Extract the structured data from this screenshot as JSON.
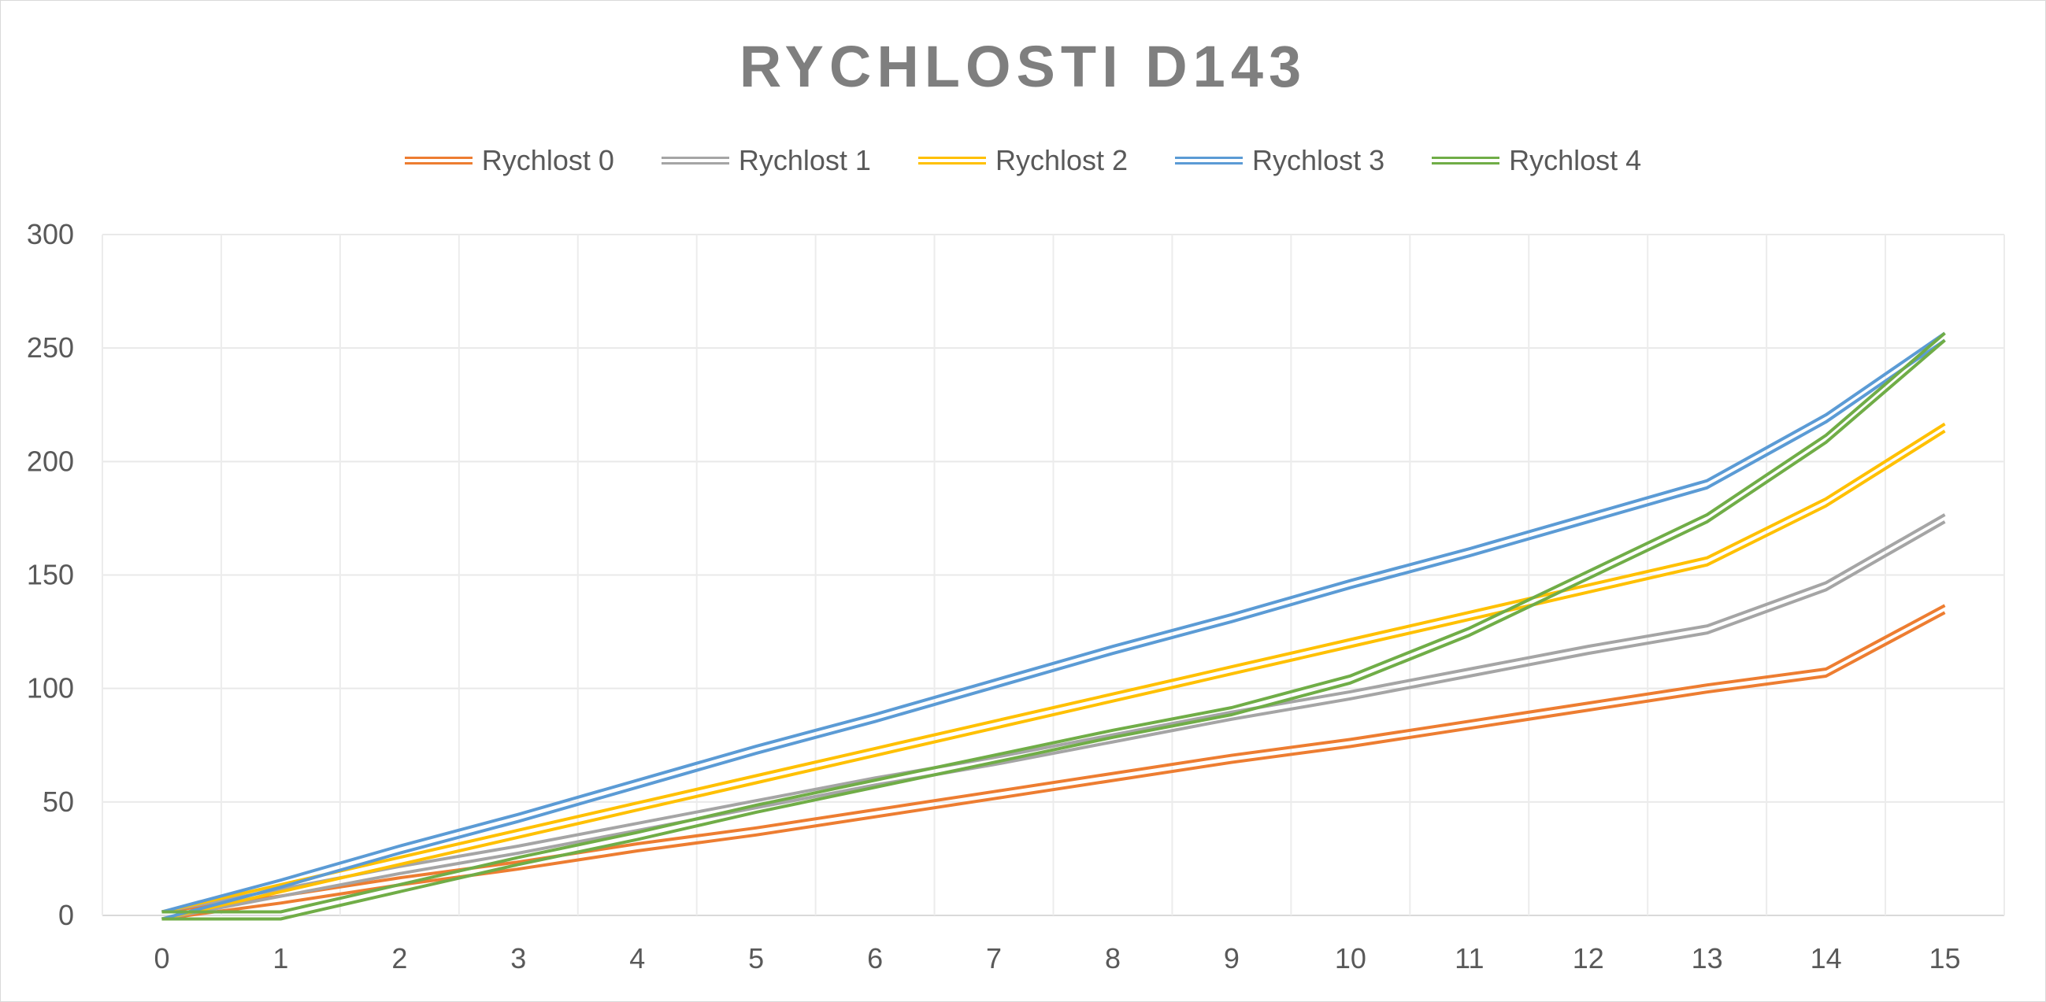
{
  "chart_data": {
    "type": "line",
    "title": "RYCHLOSTI D143",
    "x": [
      0,
      1,
      2,
      3,
      4,
      5,
      6,
      7,
      8,
      9,
      10,
      11,
      12,
      13,
      14,
      15
    ],
    "ylim": [
      0,
      300
    ],
    "yticks": [
      0,
      50,
      100,
      150,
      200,
      250,
      300
    ],
    "grid": true,
    "legend_position": "top",
    "line_style": "double",
    "series": [
      {
        "name": "Rychlost 0",
        "color": "#ED7D31",
        "values": [
          0,
          7,
          15,
          22,
          30,
          37,
          45,
          53,
          61,
          69,
          76,
          84,
          92,
          100,
          107,
          135
        ]
      },
      {
        "name": "Rychlost 1",
        "color": "#A5A5A5",
        "values": [
          0,
          10,
          20,
          29,
          39,
          49,
          59,
          68,
          78,
          88,
          97,
          107,
          117,
          126,
          145,
          175
        ]
      },
      {
        "name": "Rychlost 2",
        "color": "#FFC000",
        "values": [
          0,
          12,
          24,
          36,
          48,
          60,
          72,
          84,
          96,
          108,
          120,
          132,
          144,
          156,
          182,
          215
        ]
      },
      {
        "name": "Rychlost 3",
        "color": "#5B9BD5",
        "values": [
          0,
          14,
          29,
          43,
          58,
          73,
          87,
          102,
          117,
          131,
          146,
          160,
          175,
          190,
          219,
          255
        ]
      },
      {
        "name": "Rychlost 4",
        "color": "#70AD47",
        "values": [
          0,
          0,
          12,
          24,
          35,
          47,
          58,
          69,
          80,
          90,
          104,
          125,
          150,
          175,
          210,
          255
        ]
      }
    ]
  }
}
